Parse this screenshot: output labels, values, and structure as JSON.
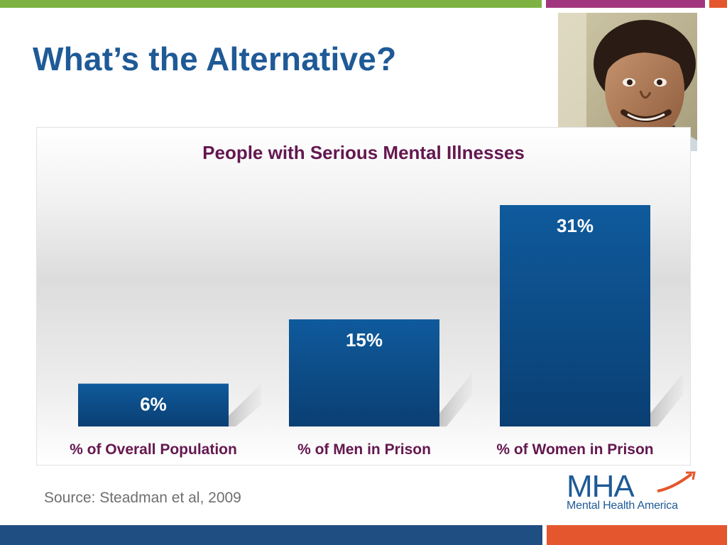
{
  "slide": {
    "title": "What’s the Alternative?",
    "source": "Source: Steadman et al, 2009",
    "photo_icon": "person-photo-icon"
  },
  "logo": {
    "wordmark": "MHA",
    "tagline": "Mental Health America"
  },
  "colors": {
    "title": "#1f5a97",
    "chart_title": "#64174f",
    "bar_top": "#0f5a9c",
    "bar_bottom": "#0a3f73",
    "top_green": "#7cb342",
    "top_purple": "#a2367e",
    "top_orange": "#e4572e",
    "bottom_blue": "#1f4e82",
    "bottom_orange": "#e4572e"
  },
  "chart_data": {
    "type": "bar",
    "title": "People with Serious Mental Illnesses",
    "categories": [
      "% of Overall Population",
      "% of Men in Prison",
      "% of Women in Prison"
    ],
    "values": [
      6,
      15,
      31
    ],
    "data_labels": [
      "6%",
      "15%",
      "31%"
    ],
    "ylim": [
      0,
      31
    ],
    "xlabel": "",
    "ylabel": "",
    "grid": false,
    "legend": "none"
  }
}
